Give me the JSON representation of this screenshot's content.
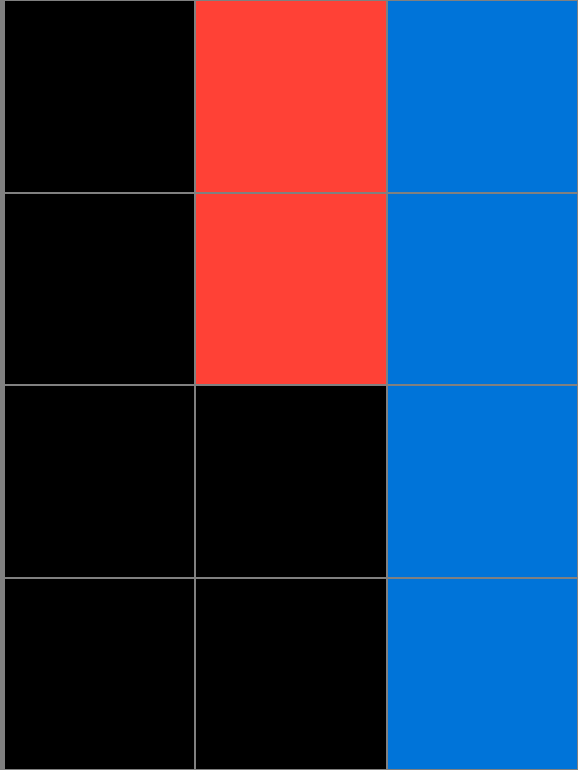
{
  "colors": {
    "black": "#000000",
    "red": "#ff4136",
    "blue": "#0074d9",
    "gridline": "#808080"
  },
  "grid": {
    "rows": 4,
    "cols": 3,
    "cells": [
      [
        "black",
        "red",
        "blue"
      ],
      [
        "black",
        "red",
        "blue"
      ],
      [
        "black",
        "black",
        "blue"
      ],
      [
        "black",
        "black",
        "blue"
      ]
    ]
  }
}
